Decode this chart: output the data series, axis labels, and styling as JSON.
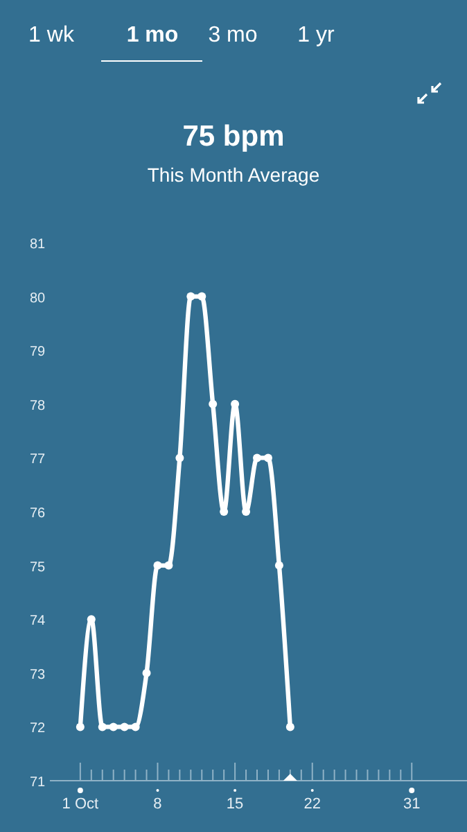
{
  "chart_data": {
    "type": "line",
    "title": "75 bpm",
    "subtitle": "This Month Average",
    "annotations": [
      "1 wk",
      "1 mo",
      "3 mo",
      "1 yr"
    ],
    "x": [
      1,
      2,
      3,
      4,
      5,
      6,
      7,
      8,
      9,
      10,
      11,
      12,
      13,
      14,
      15,
      16,
      17,
      18,
      19,
      20
    ],
    "series": [
      {
        "color": "#ffffff",
        "values": [
          72,
          74,
          72,
          72,
          72,
          72,
          73,
          75,
          75,
          77,
          80,
          80,
          78,
          76,
          78,
          76,
          77,
          77,
          75,
          72
        ]
      }
    ],
    "xlim": [
      -1.75,
      36
    ],
    "xticks": [
      {
        "value": 1,
        "label": "1 Oct"
      },
      {
        "value": 2,
        "label": null
      },
      {
        "value": 3,
        "label": null
      },
      {
        "value": 4,
        "label": null
      },
      {
        "value": 5,
        "label": null
      },
      {
        "value": 6,
        "label": null
      },
      {
        "value": 7,
        "label": null
      },
      8,
      {
        "value": 9,
        "label": null
      },
      {
        "value": 10,
        "label": null
      },
      {
        "value": 11,
        "label": null
      },
      {
        "value": 12,
        "label": null
      },
      {
        "value": 13,
        "label": null
      },
      {
        "value": 14,
        "label": null
      },
      15,
      {
        "value": 16,
        "label": null
      },
      {
        "value": 17,
        "label": null
      },
      {
        "value": 18,
        "label": null
      },
      {
        "value": 19,
        "label": null
      },
      {
        "value": 20,
        "label": null
      },
      {
        "value": 21,
        "label": null
      },
      22,
      {
        "value": 23,
        "label": null
      },
      {
        "value": 24,
        "label": null
      },
      {
        "value": 25,
        "label": null
      },
      {
        "value": 26,
        "label": null
      },
      {
        "value": 27,
        "label": null
      },
      {
        "value": 28,
        "label": null
      },
      {
        "value": 29,
        "label": null
      },
      {
        "value": 30,
        "label": null
      },
      31
    ],
    "ylim": [
      71,
      81
    ],
    "yticks": [
      71,
      72,
      73,
      74,
      75,
      76,
      77,
      78,
      79,
      80,
      81
    ],
    "grid": false,
    "marker": "circle",
    "line_style": "solid"
  }
}
